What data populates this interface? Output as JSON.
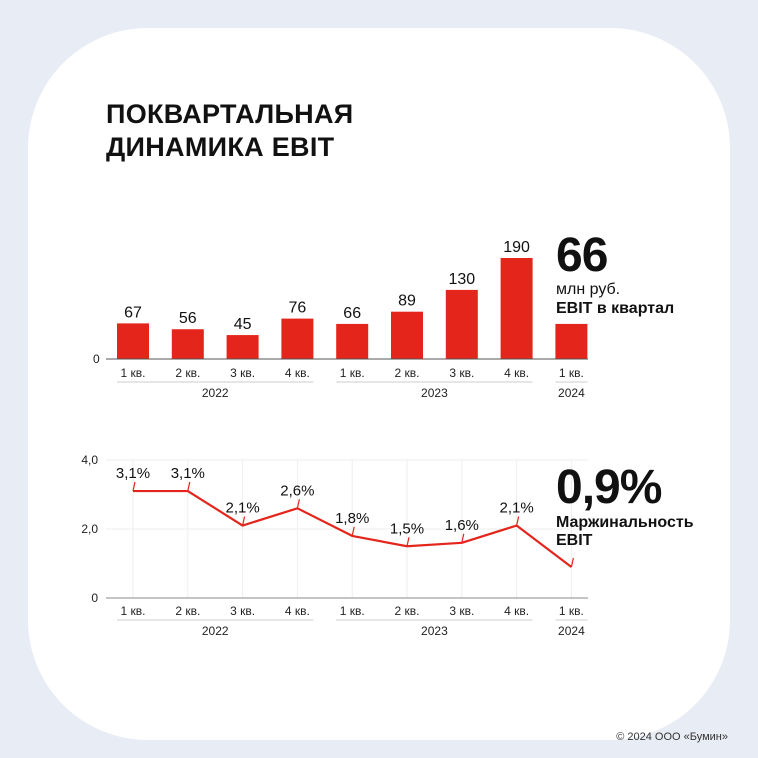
{
  "title": [
    "ПОКВАРТАЛЬНАЯ",
    "ДИНАМИКА EBIT"
  ],
  "accent_color": "#e3251b",
  "chart_data": [
    {
      "type": "bar",
      "categories": [
        "1 кв.",
        "2 кв.",
        "3 кв.",
        "4 кв.",
        "1 кв.",
        "2 кв.",
        "3 кв.",
        "4 кв.",
        "1 кв."
      ],
      "groups": [
        {
          "label": "2022",
          "span": [
            0,
            3
          ]
        },
        {
          "label": "2023",
          "span": [
            4,
            7
          ]
        },
        {
          "label": "2024",
          "span": [
            8,
            8
          ]
        }
      ],
      "values": [
        67,
        56,
        45,
        76,
        66,
        89,
        130,
        190,
        66
      ],
      "data_labels": [
        "67",
        "56",
        "45",
        "76",
        "66",
        "89",
        "130",
        "190",
        ""
      ],
      "y_ticks": [
        "0"
      ],
      "ylim": [
        0,
        190
      ]
    },
    {
      "type": "line",
      "categories": [
        "1 кв.",
        "2 кв.",
        "3 кв.",
        "4 кв.",
        "1 кв.",
        "2 кв.",
        "3 кв.",
        "4 кв.",
        "1 кв."
      ],
      "groups": [
        {
          "label": "2022",
          "span": [
            0,
            3
          ]
        },
        {
          "label": "2023",
          "span": [
            4,
            7
          ]
        },
        {
          "label": "2024",
          "span": [
            8,
            8
          ]
        }
      ],
      "values": [
        3.1,
        3.1,
        2.1,
        2.6,
        1.8,
        1.5,
        1.6,
        2.1,
        0.9
      ],
      "data_labels": [
        "3,1%",
        "3,1%",
        "2,1%",
        "2,6%",
        "1,8%",
        "1,5%",
        "1,6%",
        "2,1%",
        ""
      ],
      "y_ticks": [
        {
          "value": 0,
          "label": "0"
        },
        {
          "value": 2,
          "label": "2,0"
        },
        {
          "value": 4,
          "label": "4,0"
        }
      ],
      "ylim": [
        0,
        4
      ],
      "grid": true
    }
  ],
  "kpi_ebit": {
    "value": "66",
    "unit": "млн руб.",
    "label": "EBIT в квартал"
  },
  "kpi_margin": {
    "value": "0,9%",
    "label": [
      "Маржинальность",
      "EBIT"
    ]
  },
  "copyright": "© 2024 ООО «Бумин»"
}
